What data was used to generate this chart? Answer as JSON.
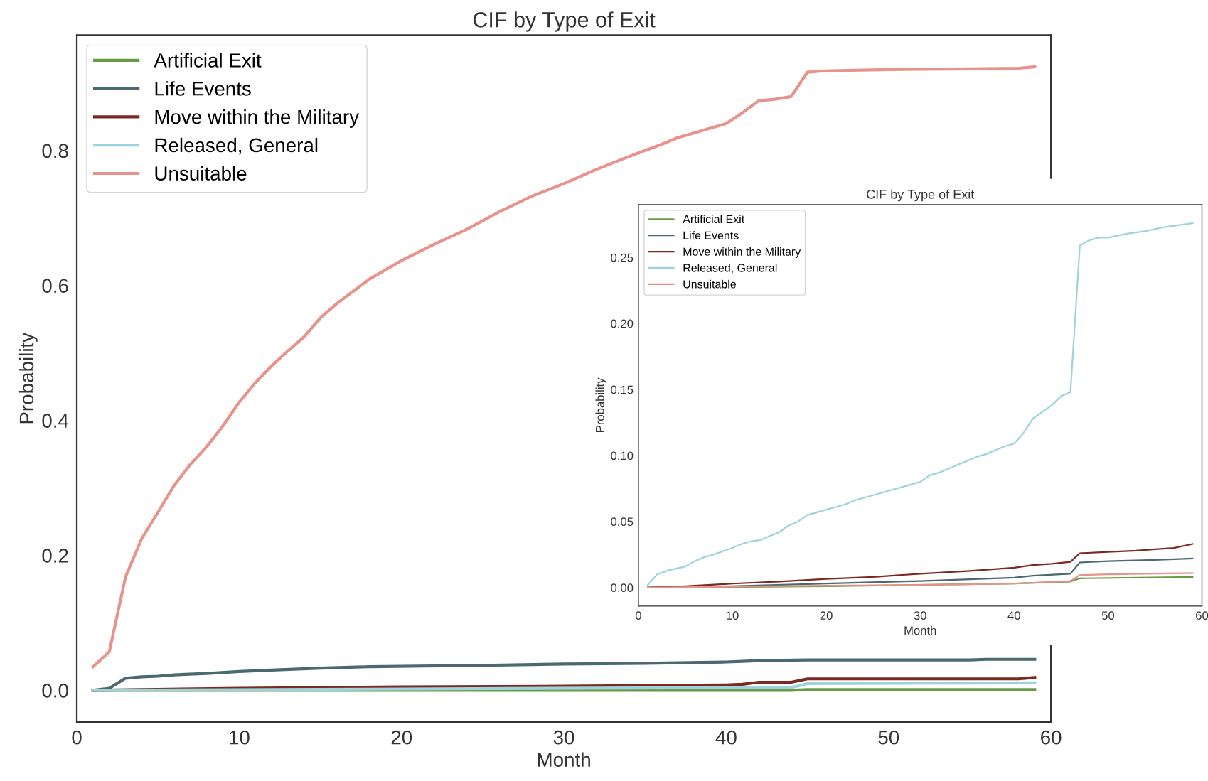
{
  "chart_data": [
    {
      "type": "line",
      "title": "CIF by Type of Exit",
      "xlabel": "Month",
      "ylabel": "Probability",
      "xlim": [
        0,
        60
      ],
      "xticks": [
        0,
        10,
        20,
        30,
        40,
        50,
        60
      ],
      "ylim": [
        -0.047,
        0.971
      ],
      "yticks": [
        {
          "value": 0,
          "label": "0.0"
        },
        {
          "value": 0.2,
          "label": "0.2"
        },
        {
          "value": 0.4,
          "label": "0.4"
        },
        {
          "value": 0.6,
          "label": "0.6"
        },
        {
          "value": 0.8,
          "label": "0.8"
        }
      ],
      "grid": false,
      "legend": "top left",
      "series": [
        {
          "name": "Artificial Exit",
          "color": "#6a9a48",
          "x": [
            1,
            44,
            45,
            59
          ],
          "values": [
            0,
            0,
            0.001,
            0.001
          ]
        },
        {
          "name": "Life Events",
          "color": "#4a6a70",
          "x": [
            1,
            2,
            3,
            4,
            5,
            6,
            8,
            10,
            12,
            15,
            18,
            25,
            30,
            35,
            40,
            41,
            42,
            45,
            50,
            55,
            56,
            59
          ],
          "values": [
            0,
            0.003,
            0.018,
            0.02,
            0.021,
            0.023,
            0.025,
            0.028,
            0.03,
            0.033,
            0.035,
            0.037,
            0.039,
            0.04,
            0.042,
            0.043,
            0.044,
            0.045,
            0.045,
            0.045,
            0.046,
            0.046
          ]
        },
        {
          "name": "Move within the Military",
          "color": "#7b2a22",
          "x": [
            1,
            10,
            20,
            30,
            40,
            41,
            42,
            44,
            45,
            58,
            59
          ],
          "values": [
            0,
            0.003,
            0.005,
            0.006,
            0.008,
            0.009,
            0.012,
            0.012,
            0.017,
            0.017,
            0.019
          ]
        },
        {
          "name": "Released, General",
          "color": "#9dd4dc",
          "x": [
            1,
            20,
            40,
            44,
            45,
            59
          ],
          "values": [
            0,
            0.002,
            0.004,
            0.004,
            0.01,
            0.011
          ]
        },
        {
          "name": "Unsuitable",
          "color": "#e8938a",
          "x": [
            1,
            2,
            3,
            4,
            5,
            6,
            7,
            8,
            9,
            10,
            11,
            12,
            13,
            14,
            15,
            16,
            17,
            18,
            19,
            20,
            22,
            24,
            26,
            28,
            30,
            32,
            34,
            35,
            36,
            37,
            38,
            39,
            40,
            41,
            42,
            43,
            44,
            45,
            46,
            50,
            55,
            58,
            59
          ],
          "values": [
            0.035,
            0.057,
            0.168,
            0.225,
            0.264,
            0.304,
            0.335,
            0.361,
            0.392,
            0.427,
            0.456,
            0.481,
            0.503,
            0.524,
            0.552,
            0.573,
            0.591,
            0.609,
            0.623,
            0.637,
            0.661,
            0.683,
            0.709,
            0.732,
            0.751,
            0.772,
            0.791,
            0.8,
            0.809,
            0.819,
            0.826,
            0.833,
            0.84,
            0.856,
            0.874,
            0.876,
            0.88,
            0.916,
            0.918,
            0.92,
            0.921,
            0.922,
            0.924
          ]
        }
      ]
    },
    {
      "type": "line",
      "title": "CIF by Type of Exit",
      "xlabel": "Month",
      "ylabel": "Probability",
      "xlim": [
        0,
        60
      ],
      "xticks": [
        0,
        10,
        20,
        30,
        40,
        50,
        60
      ],
      "ylim": [
        -0.014,
        0.29
      ],
      "yticks": [
        {
          "value": 0,
          "label": "0.00"
        },
        {
          "value": 0.05,
          "label": "0.05"
        },
        {
          "value": 0.1,
          "label": "0.10"
        },
        {
          "value": 0.15,
          "label": "0.15"
        },
        {
          "value": 0.2,
          "label": "0.20"
        },
        {
          "value": 0.25,
          "label": "0.25"
        }
      ],
      "grid": false,
      "legend": "top left",
      "series": [
        {
          "name": "Artificial Exit",
          "color": "#6a9a48",
          "x": [
            1,
            20,
            40,
            46,
            47,
            59
          ],
          "values": [
            0,
            0.001,
            0.003,
            0.0045,
            0.007,
            0.008
          ]
        },
        {
          "name": "Life Events",
          "color": "#4a6a70",
          "x": [
            1,
            10,
            20,
            30,
            40,
            42,
            46,
            47,
            50,
            55,
            59
          ],
          "values": [
            0,
            0.001,
            0.003,
            0.005,
            0.0075,
            0.009,
            0.0105,
            0.019,
            0.02,
            0.021,
            0.022
          ]
        },
        {
          "name": "Move within the Military",
          "color": "#7b2a22",
          "x": [
            1,
            5,
            10,
            15,
            20,
            25,
            30,
            35,
            40,
            42,
            44,
            46,
            47,
            50,
            53,
            55,
            57,
            59
          ],
          "values": [
            0,
            0.001,
            0.003,
            0.0045,
            0.0065,
            0.008,
            0.0105,
            0.0125,
            0.015,
            0.017,
            0.018,
            0.0195,
            0.026,
            0.027,
            0.028,
            0.029,
            0.03,
            0.033
          ]
        },
        {
          "name": "Released, General",
          "color": "#9dd4dc",
          "x": [
            1,
            2,
            3,
            4,
            5,
            6,
            7,
            8,
            9,
            10,
            11,
            12,
            13,
            14,
            15,
            16,
            17,
            18,
            19,
            20,
            21,
            22,
            23,
            24,
            25,
            26,
            27,
            28,
            29,
            30,
            31,
            32,
            33,
            34,
            35,
            36,
            37,
            38,
            39,
            40,
            41,
            42,
            43,
            44,
            45,
            46,
            47,
            48,
            49,
            50,
            52,
            54,
            56,
            58,
            59
          ],
          "values": [
            0.002,
            0.01,
            0.0126,
            0.0144,
            0.016,
            0.02,
            0.023,
            0.025,
            0.0275,
            0.03,
            0.033,
            0.035,
            0.036,
            0.039,
            0.042,
            0.047,
            0.05,
            0.055,
            0.057,
            0.059,
            0.061,
            0.063,
            0.066,
            0.068,
            0.07,
            0.072,
            0.074,
            0.076,
            0.078,
            0.08,
            0.085,
            0.087,
            0.09,
            0.093,
            0.096,
            0.099,
            0.101,
            0.104,
            0.107,
            0.109,
            0.117,
            0.128,
            0.133,
            0.138,
            0.145,
            0.148,
            0.259,
            0.263,
            0.265,
            0.265,
            0.268,
            0.27,
            0.273,
            0.275,
            0.276
          ]
        },
        {
          "name": "Unsuitable",
          "color": "#e8938a",
          "x": [
            1,
            20,
            30,
            40,
            46,
            47,
            50,
            59
          ],
          "values": [
            0,
            0.0015,
            0.002,
            0.003,
            0.005,
            0.0095,
            0.01,
            0.011
          ]
        }
      ]
    }
  ]
}
